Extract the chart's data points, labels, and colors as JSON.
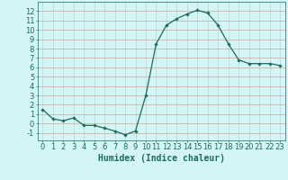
{
  "x": [
    0,
    1,
    2,
    3,
    4,
    5,
    6,
    7,
    8,
    9,
    10,
    11,
    12,
    13,
    14,
    15,
    16,
    17,
    18,
    19,
    20,
    21,
    22,
    23
  ],
  "y": [
    1.5,
    0.5,
    0.3,
    0.6,
    -0.2,
    -0.2,
    -0.5,
    -0.8,
    -1.2,
    -0.8,
    3.0,
    8.5,
    10.5,
    11.2,
    11.7,
    12.1,
    11.8,
    10.5,
    8.5,
    6.8,
    6.4,
    6.4,
    6.4,
    6.2
  ],
  "line_color": "#1a6b5a",
  "marker": "D",
  "marker_size": 1.8,
  "xlabel": "Humidex (Indice chaleur)",
  "xlabel_fontsize": 7,
  "ylabel_ticks": [
    -1,
    0,
    1,
    2,
    3,
    4,
    5,
    6,
    7,
    8,
    9,
    10,
    11,
    12
  ],
  "xlim": [
    -0.5,
    23.5
  ],
  "ylim": [
    -1.8,
    13.0
  ],
  "bg_color": "#d4f5f5",
  "grid_color_h": "#d4a0a0",
  "grid_color_v": "#b8d4d4",
  "tick_fontsize": 6,
  "linewidth": 0.9
}
